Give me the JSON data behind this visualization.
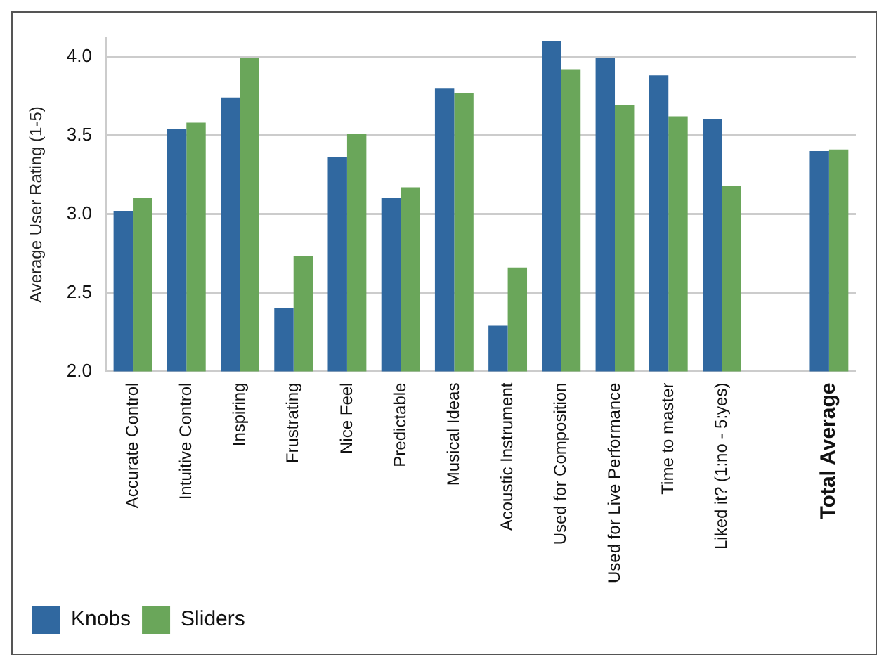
{
  "chart_data": {
    "type": "bar",
    "ylabel": "Average User Rating (1-5)",
    "categories": [
      "Accurate Control",
      "Intuitive Control",
      "Inspiring",
      "Frustrating",
      "Nice Feel",
      "Predictable",
      "Musical Ideas",
      "Acoustic Instrument",
      "Used for Composition",
      "Used for Live Performance",
      "Time to master",
      "Liked it? (1:no - 5:yes)",
      null,
      "Total Average"
    ],
    "series": [
      {
        "name": "Knobs",
        "color": "#3068a0",
        "values": [
          3.02,
          3.54,
          3.74,
          2.4,
          3.36,
          3.1,
          3.8,
          2.29,
          4.1,
          3.99,
          3.88,
          3.6,
          null,
          3.4
        ]
      },
      {
        "name": "Sliders",
        "color": "#6aa65a",
        "values": [
          3.1,
          3.58,
          3.99,
          2.73,
          3.51,
          3.17,
          3.77,
          2.66,
          3.92,
          3.69,
          3.62,
          3.18,
          null,
          3.41
        ]
      }
    ],
    "ylim": [
      2,
      4.12
    ],
    "yticks": [
      {
        "value": 2,
        "label": "2.0"
      },
      {
        "value": 2.5,
        "label": "2.5"
      },
      {
        "value": 3,
        "label": "3.0"
      },
      {
        "value": 3.5,
        "label": "3.5"
      },
      {
        "value": 4,
        "label": "4.0"
      }
    ],
    "grid": "y",
    "legend": "bottom left"
  }
}
